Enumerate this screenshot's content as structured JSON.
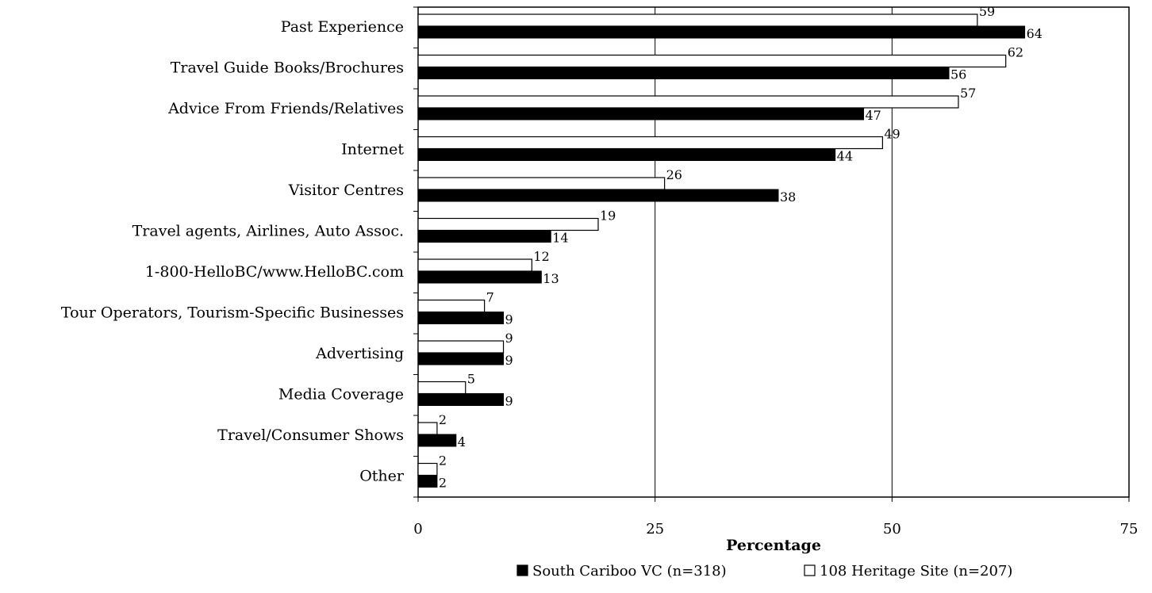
{
  "chart_data": {
    "type": "bar",
    "orientation": "horizontal",
    "categories": [
      "Past Experience",
      "Travel Guide Books/Brochures",
      "Advice From Friends/Relatives",
      "Internet",
      "Visitor Centres",
      "Travel agents, Airlines, Auto Assoc.",
      "1-800-HelloBC/www.HelloBC.com",
      "Tour Operators, Tourism-Specific Businesses",
      "Advertising",
      "Media Coverage",
      "Travel/Consumer Shows",
      "Other"
    ],
    "series": [
      {
        "name": "108 Heritage Site (n=207)",
        "color": "#ffffff",
        "values": [
          59,
          62,
          57,
          49,
          26,
          19,
          12,
          7,
          9,
          5,
          2,
          2
        ]
      },
      {
        "name": "South Cariboo VC (n=318)",
        "color": "#000000",
        "values": [
          64,
          56,
          47,
          44,
          38,
          14,
          13,
          9,
          9,
          9,
          4,
          2
        ]
      }
    ],
    "xlabel": "Percentage",
    "ylabel": "",
    "xlim": [
      0,
      75
    ],
    "xticks": [
      0,
      25,
      50,
      75
    ],
    "xtick_labels": [
      "0",
      "25",
      "50",
      "75"
    ],
    "grid": "vertical major gridlines",
    "legend_position": "bottom",
    "legend_order": [
      "South Cariboo VC (n=318)",
      "108 Heritage Site (n=207)"
    ]
  }
}
